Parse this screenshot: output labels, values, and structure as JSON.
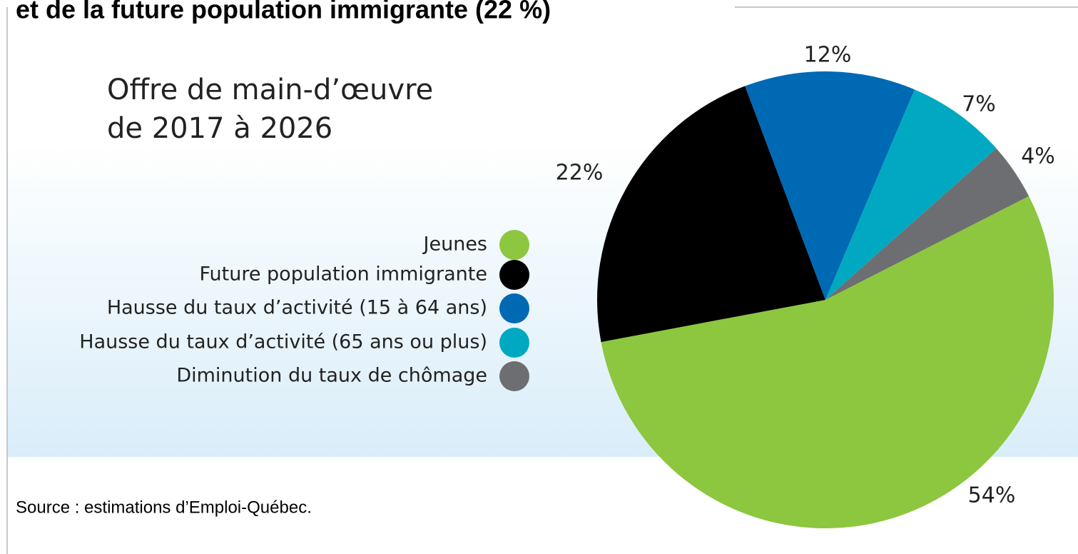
{
  "heading": "et de la future population immigrante (22 %)",
  "chart_data": {
    "type": "pie",
    "title": [
      "Offre de main-d’œuvre",
      "de 2017 à 2026"
    ],
    "categories": [
      "Jeunes",
      "Future population immigrante",
      "Hausse du taux d’activité (15 à 64 ans)",
      "Hausse du taux d’activité (65 ans ou plus)",
      "Diminution du taux de chômage"
    ],
    "values": [
      54,
      22,
      12,
      7,
      4
    ],
    "value_labels": [
      "54%",
      "22%",
      "12%",
      "7%",
      "4%"
    ],
    "colors": [
      "#8dc63f",
      "#000000",
      "#0069b4",
      "#00a9c1",
      "#6d6e71"
    ],
    "legend": "left"
  },
  "source": "Source : estimations d’Emploi-Québec."
}
